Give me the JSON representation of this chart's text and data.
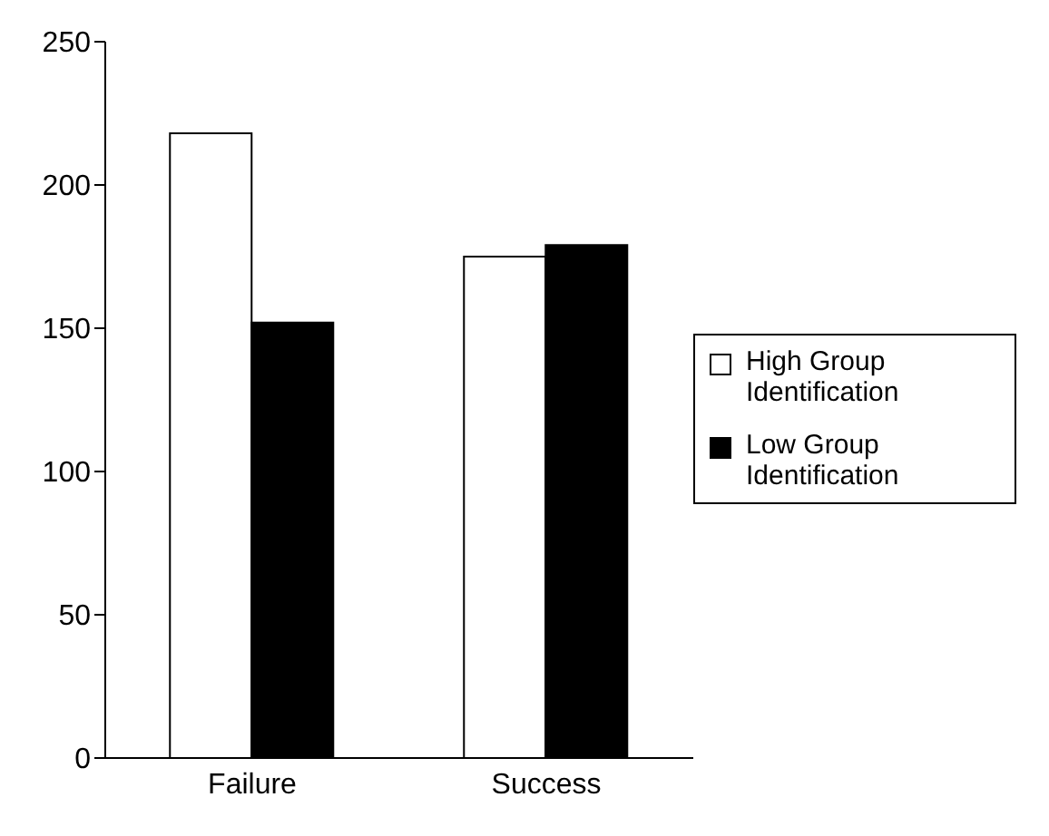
{
  "chart_data": {
    "type": "bar",
    "categories": [
      "Failure",
      "Success"
    ],
    "series": [
      {
        "name": "High Group Identification",
        "color": "#ffffff",
        "values": [
          218,
          175
        ]
      },
      {
        "name": "Low Group Identification",
        "color": "#000000",
        "values": [
          152,
          179
        ]
      }
    ],
    "ylim": [
      0,
      250
    ],
    "yticks": [
      0,
      50,
      100,
      150,
      200,
      250
    ],
    "grid": false,
    "legend": "right"
  }
}
